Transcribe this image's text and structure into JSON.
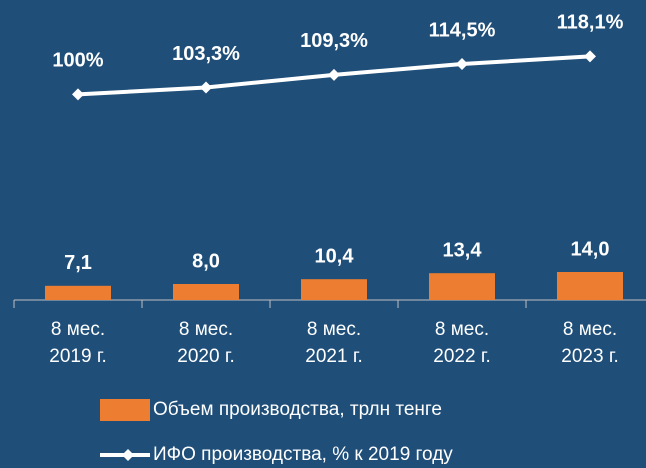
{
  "chart_data": {
    "type": "bar-line",
    "categories": [
      [
        "8 мес.",
        "2019 г."
      ],
      [
        "8 мес.",
        "2020 г."
      ],
      [
        "8 мес.",
        "2021 г."
      ],
      [
        "8 мес.",
        "2022 г."
      ],
      [
        "8 мес.",
        "2023 г."
      ]
    ],
    "series": [
      {
        "name": "Объем производства, трлн тенге",
        "type": "bar",
        "color": "#ed7d31",
        "values": [
          7.1,
          8.0,
          10.4,
          13.4,
          14.0
        ],
        "value_labels": [
          "7,1",
          "8,0",
          "10,4",
          "13,4",
          "14,0"
        ]
      },
      {
        "name": "ИФО производства, % к 2019 году",
        "type": "line",
        "axis": "y2",
        "color": "#ffffff",
        "values": [
          100,
          103.3,
          109.3,
          114.5,
          118.1
        ],
        "value_labels": [
          "100%",
          "103,3%",
          "109,3%",
          "114,5%",
          "118,1%"
        ]
      }
    ],
    "ylim": [
      0,
      150
    ],
    "y2lim": [
      2,
      145
    ],
    "legend": "bottom"
  }
}
